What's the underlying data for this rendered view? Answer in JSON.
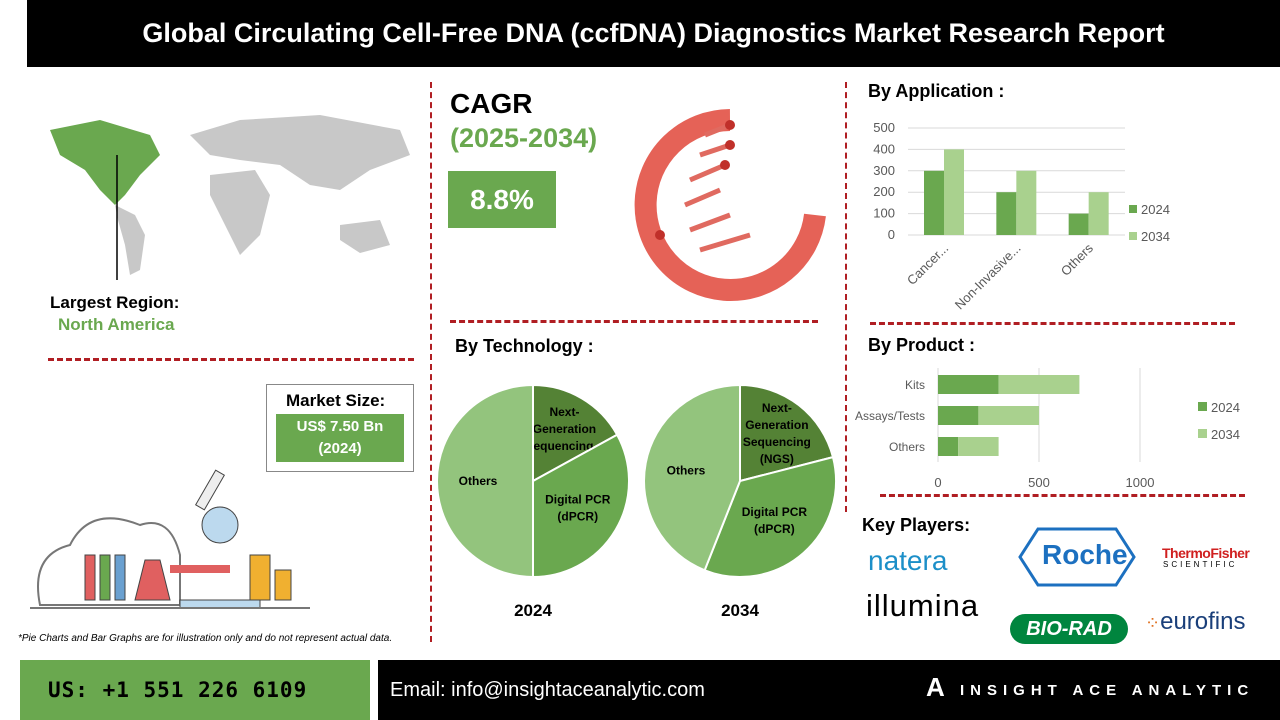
{
  "title": "Global Circulating Cell-Free DNA (ccfDNA) Diagnostics Market Research Report",
  "region": {
    "label": "Largest Region:",
    "value": "North America"
  },
  "cagr": {
    "label": "CAGR",
    "period": "(2025-2034)",
    "value": "8.8%"
  },
  "market_size": {
    "label": "Market Size:",
    "value": "US$ 7.50 Bn",
    "year": "(2024)"
  },
  "sections": {
    "application": "By Application :",
    "technology": "By Technology :",
    "product": "By Product :",
    "players": "Key Players:"
  },
  "players": [
    "natera",
    "Roche",
    "ThermoFisher",
    "SCIENTIFIC",
    "illumina",
    "BIO-RAD",
    "eurofins"
  ],
  "disclaimer": "*Pie Charts and Bar Graphs are for illustration only and do not represent actual data.",
  "footer": {
    "phone": "US: +1 551 226 6109",
    "email": "Email: info@insightaceanalytic.com",
    "brand": "INSIGHT ACE ANALYTIC"
  },
  "colors": {
    "accent": "#6aa84f",
    "light": "#a9d18e",
    "dark": "#548235",
    "red": "#b01e23"
  },
  "chart_data": [
    {
      "type": "bar",
      "title": "By Application",
      "categories": [
        "Cancer...",
        "Non-Invasive...",
        "Others"
      ],
      "series": [
        {
          "name": "2024",
          "values": [
            300,
            200,
            100
          ]
        },
        {
          "name": "2034",
          "values": [
            400,
            300,
            200
          ]
        }
      ],
      "ylim": [
        0,
        500
      ],
      "yticks": [
        "0",
        "100",
        "200",
        "300",
        "400",
        "500"
      ],
      "legend": "right"
    },
    {
      "type": "bar",
      "orientation": "horizontal-stacked",
      "title": "By Product",
      "categories": [
        "Kits",
        "Assays/Tests",
        "Others"
      ],
      "series": [
        {
          "name": "2024",
          "values": [
            300,
            200,
            100
          ]
        },
        {
          "name": "2034",
          "values": [
            400,
            300,
            200
          ]
        }
      ],
      "xlim": [
        0,
        1000
      ],
      "xticks": [
        "0",
        "500",
        "1000"
      ],
      "legend": "right"
    },
    {
      "type": "pie",
      "title": "2024",
      "labels": [
        "Next-Generation Sequencing...",
        "Digital PCR (dPCR)",
        "Others"
      ],
      "values": [
        17,
        33,
        50
      ]
    },
    {
      "type": "pie",
      "title": "2034",
      "labels": [
        "Next-Generation Sequencing (NGS)",
        "Digital PCR (dPCR)",
        "Others"
      ],
      "values": [
        21,
        35,
        44
      ]
    }
  ]
}
